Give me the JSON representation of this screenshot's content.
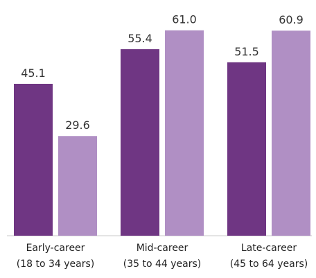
{
  "chart_data": {
    "type": "bar",
    "categories": [
      [
        "Early-career",
        "(18 to 34 years)"
      ],
      [
        "Mid-career",
        "(35 to 44 years)"
      ],
      [
        "Late-career",
        "(45 to 64 years)"
      ]
    ],
    "series": [
      {
        "values": [
          45.1,
          55.4,
          51.5
        ],
        "value_labels": [
          "45.1",
          "55.4",
          "51.5"
        ],
        "color": "#6f3683"
      },
      {
        "values": [
          29.6,
          61.0,
          60.9
        ],
        "value_labels": [
          "29.6",
          "61.0",
          "60.9"
        ],
        "color": "#b08fc4"
      }
    ],
    "ylim": [
      0,
      70
    ],
    "grid": false,
    "legend": "none",
    "title": "",
    "xlabel": "",
    "ylabel": ""
  }
}
